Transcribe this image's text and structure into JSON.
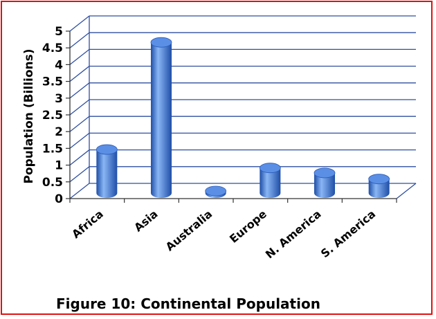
{
  "caption": "Figure 10:  Continental Population",
  "chart_data": {
    "type": "bar",
    "title": "Figure 10:  Continental Population",
    "ylabel": "Population (Billions)",
    "xlabel": "",
    "ylim": [
      0,
      5
    ],
    "yticks": [
      "0",
      "0.5",
      "1",
      "1.5",
      "2",
      "2.5",
      "3",
      "3.5",
      "4",
      "4.5",
      "5"
    ],
    "categories": [
      "Africa",
      "Asia",
      "Australia",
      "Europe",
      "N. America",
      "S. America"
    ],
    "values": [
      1.3,
      4.5,
      0.03,
      0.75,
      0.6,
      0.42
    ],
    "grid": true,
    "colors": {
      "bar": "#3a78d8",
      "bar_dark": "#1f4ea6",
      "bar_light": "#8ab6f5",
      "grid": "#2e4ea0",
      "frame": "#e01010"
    }
  }
}
